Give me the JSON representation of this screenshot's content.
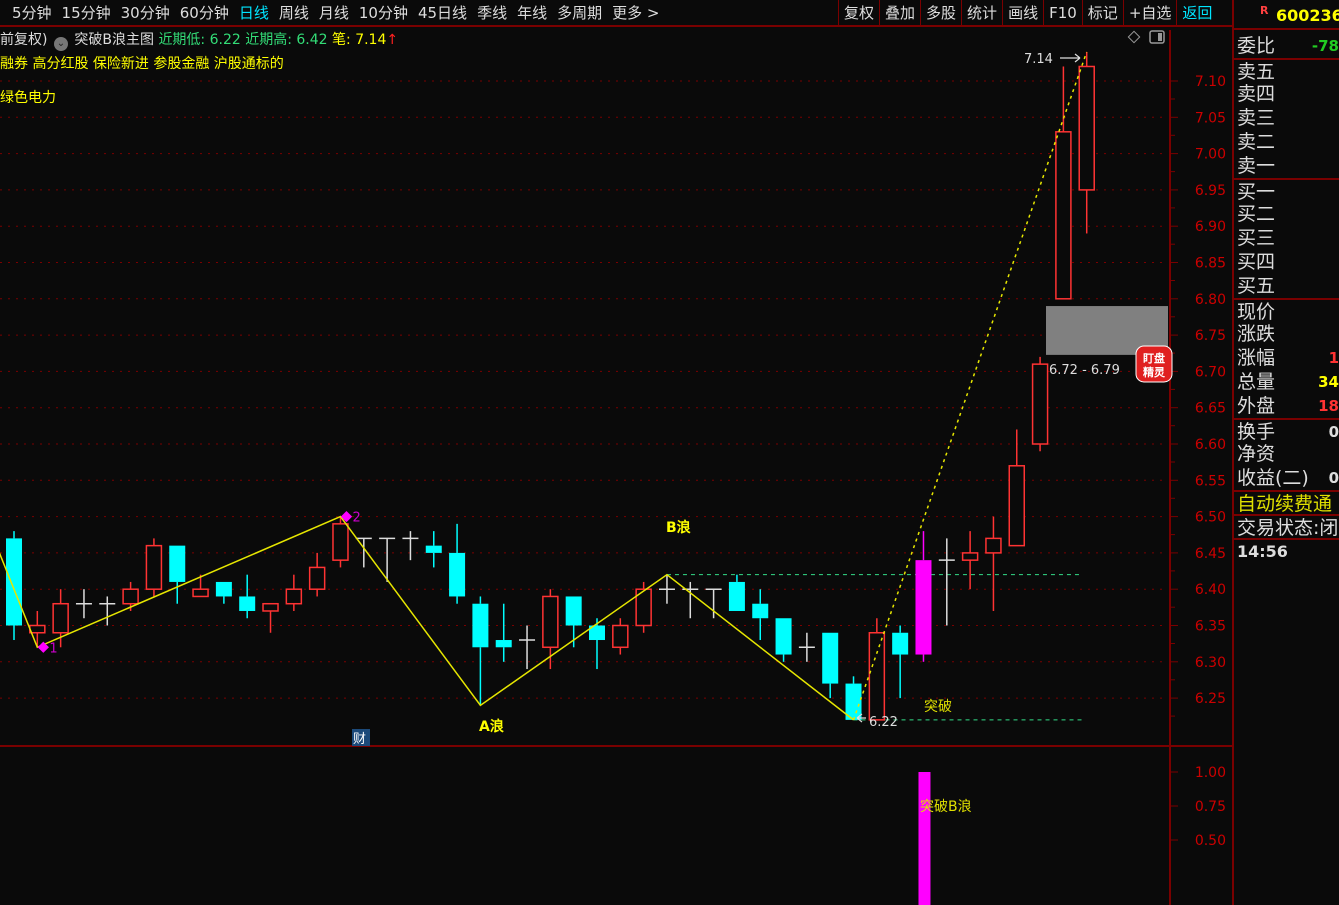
{
  "toolbar": {
    "periods": [
      "5分钟",
      "15分钟",
      "30分钟",
      "60分钟",
      "日线",
      "周线",
      "月线",
      "10分钟",
      "45日线",
      "季线",
      "年线",
      "多周期",
      "更多 >"
    ],
    "active_period": "日线",
    "actions": [
      "复权",
      "叠加",
      "多股",
      "统计",
      "画线",
      "F10",
      "标记",
      "+自选",
      "返回"
    ]
  },
  "header": {
    "adjust": "前复权)",
    "indicator": "突破B浪主图",
    "recent_low": "近期低: 6.22",
    "recent_high": "近期高: 6.42",
    "stroke": "笔: 7.14",
    "arrow": "↑",
    "tags": "融券 高分红股 保险新进 参股金融 沪股通标的",
    "tags2": "绿色电力"
  },
  "panel": {
    "r": "R",
    "code": "600236",
    "weibi": {
      "label": "委比",
      "value": "-78"
    },
    "sell": [
      "卖五",
      "卖四",
      "卖三",
      "卖二",
      "卖一"
    ],
    "buy": [
      "买一",
      "买二",
      "买三",
      "买四",
      "买五"
    ],
    "quote": [
      {
        "label": "现价",
        "value": ""
      },
      {
        "label": "涨跌",
        "value": ""
      },
      {
        "label": "涨幅",
        "value": "1"
      },
      {
        "label": "总量",
        "value": "34"
      },
      {
        "label": "外盘",
        "value": "18"
      }
    ],
    "misc": [
      {
        "label": "换手",
        "value": "0"
      },
      {
        "label": "净资",
        "value": ""
      },
      {
        "label": "收益(二)",
        "value": "0"
      }
    ],
    "promo": "自动续费通",
    "status": "交易状态:闭",
    "time": "14:56"
  },
  "colors": {
    "up": "#ff3333",
    "down": "#00ffff",
    "doji": "#dddddd",
    "highlight": "#ff00ff",
    "zigzag": "#e6e600",
    "axis": "#cc0000",
    "dashed": "#33dd88"
  },
  "chart_data": [
    {
      "type": "candlestick",
      "ylim": [
        6.2,
        7.15
      ],
      "yticks": [
        "7.10",
        "7.05",
        "7.00",
        "6.95",
        "6.90",
        "6.85",
        "6.80",
        "6.75",
        "6.70",
        "6.65",
        "6.60",
        "6.55",
        "6.50",
        "6.45",
        "6.40",
        "6.35",
        "6.30",
        "6.25"
      ],
      "grid": true,
      "ohlc_order": [
        "open",
        "high",
        "low",
        "close"
      ],
      "candles": [
        [
          6.47,
          6.48,
          6.33,
          6.35
        ],
        [
          6.34,
          6.37,
          6.32,
          6.35
        ],
        [
          6.34,
          6.4,
          6.32,
          6.38
        ],
        [
          6.38,
          6.4,
          6.36,
          6.38
        ],
        [
          6.38,
          6.39,
          6.35,
          6.38
        ],
        [
          6.38,
          6.41,
          6.37,
          6.4
        ],
        [
          6.4,
          6.47,
          6.39,
          6.46
        ],
        [
          6.46,
          6.46,
          6.38,
          6.41
        ],
        [
          6.39,
          6.42,
          6.39,
          6.4
        ],
        [
          6.41,
          6.41,
          6.38,
          6.39
        ],
        [
          6.39,
          6.42,
          6.36,
          6.37
        ],
        [
          6.37,
          6.38,
          6.34,
          6.38
        ],
        [
          6.38,
          6.42,
          6.37,
          6.4
        ],
        [
          6.4,
          6.45,
          6.39,
          6.43
        ],
        [
          6.44,
          6.5,
          6.43,
          6.49
        ],
        [
          6.47,
          6.47,
          6.43,
          6.47
        ],
        [
          6.47,
          6.47,
          6.41,
          6.47
        ],
        [
          6.47,
          6.48,
          6.44,
          6.47
        ],
        [
          6.46,
          6.48,
          6.43,
          6.45
        ],
        [
          6.45,
          6.49,
          6.38,
          6.39
        ],
        [
          6.38,
          6.39,
          6.24,
          6.32
        ],
        [
          6.33,
          6.38,
          6.3,
          6.32
        ],
        [
          6.33,
          6.35,
          6.29,
          6.33
        ],
        [
          6.32,
          6.4,
          6.29,
          6.39
        ],
        [
          6.39,
          6.39,
          6.32,
          6.35
        ],
        [
          6.35,
          6.36,
          6.29,
          6.33
        ],
        [
          6.32,
          6.36,
          6.31,
          6.35
        ],
        [
          6.35,
          6.41,
          6.34,
          6.4
        ],
        [
          6.4,
          6.42,
          6.38,
          6.4
        ],
        [
          6.4,
          6.41,
          6.36,
          6.4
        ],
        [
          6.4,
          6.4,
          6.36,
          6.4
        ],
        [
          6.41,
          6.42,
          6.37,
          6.37
        ],
        [
          6.38,
          6.4,
          6.33,
          6.36
        ],
        [
          6.36,
          6.36,
          6.3,
          6.31
        ],
        [
          6.32,
          6.34,
          6.3,
          6.32
        ],
        [
          6.34,
          6.34,
          6.25,
          6.27
        ],
        [
          6.27,
          6.28,
          6.22,
          6.22
        ],
        [
          6.22,
          6.36,
          6.22,
          6.34
        ],
        [
          6.34,
          6.35,
          6.25,
          6.31
        ],
        [
          6.31,
          6.48,
          6.3,
          6.44
        ],
        [
          6.44,
          6.47,
          6.35,
          6.44
        ],
        [
          6.44,
          6.48,
          6.4,
          6.45
        ],
        [
          6.45,
          6.5,
          6.37,
          6.47
        ],
        [
          6.46,
          6.62,
          6.46,
          6.57
        ],
        [
          6.6,
          6.72,
          6.59,
          6.71
        ],
        [
          6.8,
          7.12,
          6.8,
          7.03
        ],
        [
          6.95,
          7.14,
          6.89,
          7.12
        ]
      ],
      "highlight_index": 39,
      "zigzag": [
        {
          "index": -1,
          "price": 6.48
        },
        {
          "index": 1,
          "price": 6.32
        },
        {
          "index": 14,
          "price": 6.5
        },
        {
          "index": 20,
          "price": 6.24
        },
        {
          "index": 28,
          "price": 6.42
        },
        {
          "index": 36,
          "price": 6.22
        }
      ],
      "projection": [
        {
          "index": 36,
          "price": 6.22
        },
        {
          "index": 46,
          "price": 7.14
        }
      ],
      "levels": [
        {
          "price": 6.42,
          "from_index": 28
        },
        {
          "price": 6.22,
          "from_index": 36
        }
      ],
      "zone": {
        "low": 6.72,
        "high": 6.79,
        "label": "6.72 - 6.79"
      },
      "annotations": {
        "point1": "1",
        "point2": "2",
        "a_wave": "A浪",
        "b_wave": "B浪",
        "breakout": "突破",
        "low_label": "6.22",
        "high_label": "7.14",
        "cai": "财"
      }
    },
    {
      "type": "bar",
      "ylim": [
        0,
        1.1
      ],
      "yticks": [
        "1.00",
        "0.75",
        "0.50"
      ],
      "bars": [
        {
          "index": 39,
          "value": 1.0
        }
      ],
      "label": "突破B浪"
    }
  ]
}
